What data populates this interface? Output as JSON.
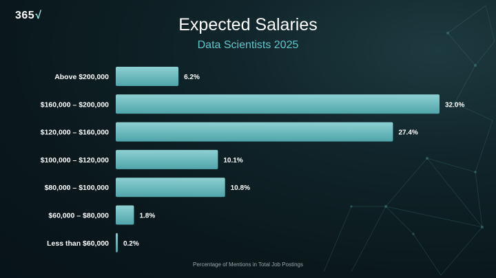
{
  "logo": {
    "text": "365",
    "mark": "√",
    "icon": "check-root-icon"
  },
  "colors": {
    "bar": "#5cb3b7",
    "bar_top": "#8ed0d2",
    "background": "#0b1a1e",
    "subtitle": "#5ec8c8"
  },
  "chart_data": {
    "type": "bar",
    "orientation": "horizontal",
    "title": "Expected Salaries",
    "subtitle": "Data Scientists 2025",
    "xlabel": "Percentage of Mentions in Total Job Postings",
    "ylabel": "",
    "xlim": [
      0,
      32.0
    ],
    "grid": false,
    "categories": [
      "Above $200,000",
      "$160,000 – $200,000",
      "$120,000 – $160,000",
      "$100,000 – $120,000",
      "$80,000 – $100,000",
      "$60,000 – $80,000",
      "Less than $60,000"
    ],
    "values": [
      6.2,
      32.0,
      27.4,
      10.1,
      10.8,
      1.8,
      0.2
    ],
    "value_labels": [
      "6.2%",
      "32.0%",
      "27.4%",
      "10.1%",
      "10.8%",
      "1.8%",
      "0.2%"
    ]
  }
}
